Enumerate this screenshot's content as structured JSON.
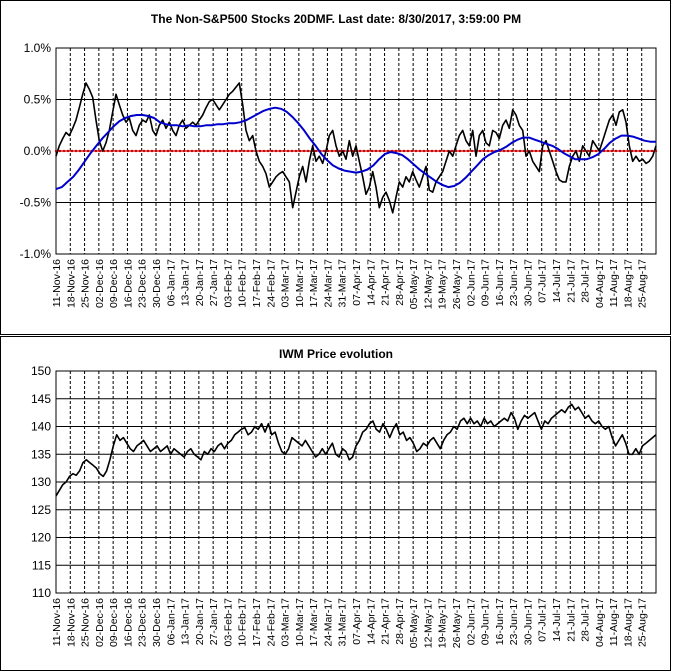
{
  "chart_data": [
    {
      "type": "line",
      "title": "The Non-S&P500 Stocks 20DMF.  Last date: 8/30/2017, 3:59:00 PM",
      "xlabel": "",
      "ylabel": "",
      "ylim": [
        -1.0,
        1.0
      ],
      "y_ticks": [
        "1.0%",
        "0.5%",
        "0.0%",
        "-0.5%",
        "-1.0%"
      ],
      "y_tick_values": [
        1.0,
        0.5,
        0.0,
        -0.5,
        -1.0
      ],
      "x_tick_labels": [
        "11-Nov-16",
        "18-Nov-16",
        "25-Nov-16",
        "02-Dec-16",
        "09-Dec-16",
        "16-Dec-16",
        "23-Dec-16",
        "30-Dec-16",
        "06-Jan-17",
        "13-Jan-17",
        "20-Jan-17",
        "27-Jan-17",
        "03-Feb-17",
        "10-Feb-17",
        "17-Feb-17",
        "24-Feb-17",
        "03-Mar-17",
        "10-Mar-17",
        "17-Mar-17",
        "24-Mar-17",
        "31-Mar-17",
        "07-Apr-17",
        "14-Apr-17",
        "21-Apr-17",
        "28-Apr-17",
        "05-May-17",
        "12-May-17",
        "19-May-17",
        "26-May-17",
        "02-Jun-17",
        "09-Jun-17",
        "16-Jun-17",
        "23-Jun-17",
        "30-Jun-17",
        "07-Jul-17",
        "14-Jul-17",
        "21-Jul-17",
        "28-Jul-17",
        "04-Aug-17",
        "11-Aug-17",
        "18-Aug-17",
        "25-Aug-17"
      ],
      "grid": true,
      "colors": {
        "black_series": "#000000",
        "blue_series": "#0000cc",
        "zero_line": "#cc0000"
      },
      "series": [
        {
          "values": [
            -0.05,
            0.05,
            0.12,
            0.18,
            0.15,
            0.22,
            0.3,
            0.42,
            0.55,
            0.66,
            0.6,
            0.52,
            0.3,
            0.1,
            0.0,
            0.08,
            0.2,
            0.38,
            0.55,
            0.45,
            0.35,
            0.28,
            0.32,
            0.2,
            0.15,
            0.25,
            0.3,
            0.28,
            0.35,
            0.2,
            0.15,
            0.25,
            0.3,
            0.22,
            0.28,
            0.2,
            0.15,
            0.25,
            0.3,
            0.22,
            0.25,
            0.28,
            0.25,
            0.3,
            0.35,
            0.42,
            0.48,
            0.5,
            0.45,
            0.4,
            0.45,
            0.5,
            0.55,
            0.58,
            0.62,
            0.66,
            0.45,
            0.2,
            0.1,
            0.15,
            0.0,
            -0.1,
            -0.15,
            -0.22,
            -0.35,
            -0.3,
            -0.25,
            -0.22,
            -0.2,
            -0.25,
            -0.3,
            -0.55,
            -0.4,
            -0.25,
            -0.15,
            -0.3,
            -0.1,
            0.05,
            -0.1,
            -0.05,
            -0.12,
            0.0,
            0.15,
            0.2,
            0.05,
            -0.05,
            0.0,
            -0.08,
            0.1,
            -0.05,
            0.05,
            -0.1,
            -0.25,
            -0.42,
            -0.35,
            -0.2,
            -0.35,
            -0.55,
            -0.45,
            -0.4,
            -0.48,
            -0.6,
            -0.45,
            -0.3,
            -0.35,
            -0.25,
            -0.3,
            -0.2,
            -0.28,
            -0.35,
            -0.25,
            -0.15,
            -0.38,
            -0.4,
            -0.3,
            -0.25,
            -0.2,
            -0.1,
            0.0,
            -0.05,
            0.05,
            0.15,
            0.2,
            0.1,
            0.05,
            0.2,
            -0.05,
            0.15,
            0.2,
            0.08,
            0.05,
            0.2,
            0.18,
            0.12,
            0.25,
            0.3,
            0.22,
            0.4,
            0.35,
            0.25,
            0.2,
            -0.05,
            0.0,
            -0.1,
            -0.15,
            -0.2,
            0.05,
            0.1,
            0.0,
            -0.1,
            -0.2,
            -0.28,
            -0.3,
            -0.3,
            -0.15,
            -0.05,
            0.0,
            -0.1,
            0.05,
            0.0,
            -0.05,
            0.1,
            0.05,
            0.0,
            0.1,
            0.2,
            0.3,
            0.35,
            0.25,
            0.38,
            0.4,
            0.28,
            0.05,
            -0.1,
            -0.05,
            -0.1,
            -0.08,
            -0.12,
            -0.1,
            -0.05,
            0.05
          ]
        },
        {
          "values": [
            -0.37,
            -0.35,
            -0.3,
            -0.25,
            -0.18,
            -0.1,
            -0.02,
            0.05,
            0.12,
            0.18,
            0.24,
            0.29,
            0.32,
            0.34,
            0.35,
            0.35,
            0.34,
            0.32,
            0.28,
            0.26,
            0.25,
            0.25,
            0.24,
            0.25,
            0.24,
            0.24,
            0.25,
            0.25,
            0.26,
            0.26,
            0.27,
            0.27,
            0.28,
            0.3,
            0.33,
            0.36,
            0.39,
            0.41,
            0.42,
            0.41,
            0.38,
            0.33,
            0.27,
            0.2,
            0.12,
            0.05,
            -0.03,
            -0.09,
            -0.14,
            -0.17,
            -0.19,
            -0.2,
            -0.21,
            -0.2,
            -0.18,
            -0.14,
            -0.08,
            -0.03,
            -0.01,
            -0.02,
            -0.04,
            -0.08,
            -0.13,
            -0.18,
            -0.22,
            -0.26,
            -0.3,
            -0.33,
            -0.35,
            -0.34,
            -0.31,
            -0.26,
            -0.2,
            -0.14,
            -0.08,
            -0.04,
            -0.01,
            0.01,
            0.04,
            0.08,
            0.11,
            0.13,
            0.13,
            0.11,
            0.09,
            0.07,
            0.05,
            0.02,
            -0.02,
            -0.05,
            -0.08,
            -0.08,
            -0.08,
            -0.06,
            -0.03,
            0.02,
            0.08,
            0.12,
            0.15,
            0.15,
            0.14,
            0.12,
            0.1,
            0.09,
            0.09
          ]
        }
      ]
    },
    {
      "type": "line",
      "title": "IWM Price evolution",
      "xlabel": "",
      "ylabel": "",
      "ylim": [
        110,
        150
      ],
      "y_ticks": [
        "150",
        "145",
        "140",
        "135",
        "130",
        "125",
        "120",
        "115",
        "110"
      ],
      "y_tick_values": [
        150,
        145,
        140,
        135,
        130,
        125,
        120,
        115,
        110
      ],
      "x_tick_labels": [
        "11-Nov-16",
        "18-Nov-16",
        "25-Nov-16",
        "02-Dec-16",
        "09-Dec-16",
        "16-Dec-16",
        "23-Dec-16",
        "30-Dec-16",
        "06-Jan-17",
        "13-Jan-17",
        "20-Jan-17",
        "27-Jan-17",
        "03-Feb-17",
        "10-Feb-17",
        "17-Feb-17",
        "24-Feb-17",
        "03-Mar-17",
        "10-Mar-17",
        "17-Mar-17",
        "24-Mar-17",
        "31-Mar-17",
        "07-Apr-17",
        "14-Apr-17",
        "21-Apr-17",
        "28-Apr-17",
        "05-May-17",
        "12-May-17",
        "19-May-17",
        "26-May-17",
        "02-Jun-17",
        "09-Jun-17",
        "16-Jun-17",
        "23-Jun-17",
        "30-Jun-17",
        "07-Jul-17",
        "14-Jul-17",
        "21-Jul-17",
        "28-Jul-17",
        "04-Aug-17",
        "11-Aug-17",
        "18-Aug-17",
        "25-Aug-17"
      ],
      "grid": true,
      "colors": {
        "price_series": "#000000"
      },
      "series": [
        {
          "values": [
            127.5,
            128.5,
            129.5,
            130.0,
            131.0,
            131.5,
            131.2,
            132.0,
            133.5,
            134.0,
            133.5,
            133.0,
            132.5,
            131.5,
            131.0,
            132.0,
            134.0,
            136.5,
            138.5,
            137.5,
            138.0,
            137.0,
            136.0,
            135.5,
            136.5,
            137.0,
            137.5,
            136.5,
            135.5,
            136.0,
            136.5,
            135.5,
            136.0,
            136.5,
            135.0,
            136.0,
            135.5,
            135.0,
            134.5,
            135.5,
            136.0,
            135.0,
            134.5,
            134.0,
            135.5,
            135.0,
            136.0,
            135.5,
            136.5,
            137.0,
            136.0,
            137.0,
            137.5,
            138.5,
            139.0,
            139.5,
            139.8,
            138.5,
            139.0,
            140.0,
            139.5,
            140.5,
            139.0,
            140.5,
            138.5,
            139.0,
            137.0,
            135.5,
            135.0,
            136.0,
            138.0,
            137.5,
            137.0,
            136.5,
            137.5,
            136.5,
            135.5,
            134.5,
            135.0,
            136.0,
            135.0,
            136.0,
            137.0,
            135.0,
            134.5,
            136.0,
            135.5,
            134.0,
            134.5,
            136.5,
            137.5,
            139.0,
            139.5,
            140.5,
            141.0,
            139.5,
            139.0,
            140.5,
            139.5,
            138.0,
            139.5,
            140.5,
            138.5,
            139.0,
            137.5,
            138.0,
            137.0,
            135.5,
            136.0,
            137.0,
            136.5,
            137.5,
            138.0,
            137.0,
            136.0,
            137.5,
            138.5,
            139.0,
            140.0,
            139.5,
            141.0,
            141.5,
            140.5,
            141.5,
            140.5,
            141.0,
            140.0,
            141.5,
            140.5,
            141.0,
            140.0,
            140.5,
            141.0,
            141.5,
            141.0,
            142.5,
            141.5,
            139.5,
            141.0,
            142.0,
            141.5,
            142.0,
            142.5,
            141.0,
            139.5,
            141.0,
            140.5,
            141.5,
            142.0,
            142.5,
            143.0,
            142.5,
            143.5,
            144.0,
            143.0,
            143.5,
            142.5,
            141.5,
            142.0,
            141.0,
            140.5,
            141.0,
            140.0,
            139.5,
            140.0,
            138.0,
            136.5,
            137.5,
            138.5,
            137.0,
            135.0,
            135.0,
            136.0,
            135.0,
            136.5,
            137.0,
            137.5,
            138.0,
            138.5
          ]
        }
      ]
    }
  ]
}
